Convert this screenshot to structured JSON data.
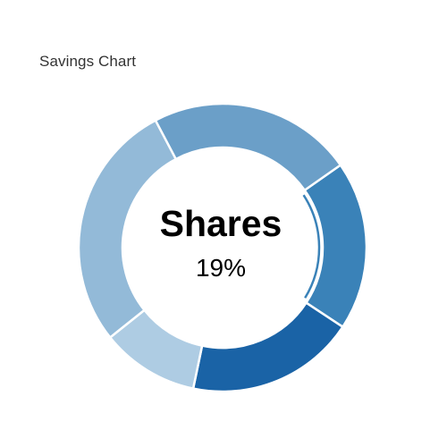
{
  "chart_data": {
    "type": "pie",
    "variant": "donut",
    "title": "Savings Chart",
    "categories": [
      "",
      "",
      "",
      "",
      ""
    ],
    "values": [
      19,
      19,
      11,
      28,
      23
    ],
    "colors": [
      "#3a82b8",
      "#1a63a6",
      "#aecce3",
      "#93bad8",
      "#6b9fc8"
    ],
    "highlighted": {
      "label": "Shares",
      "value_text": "19%",
      "index": 0
    }
  }
}
